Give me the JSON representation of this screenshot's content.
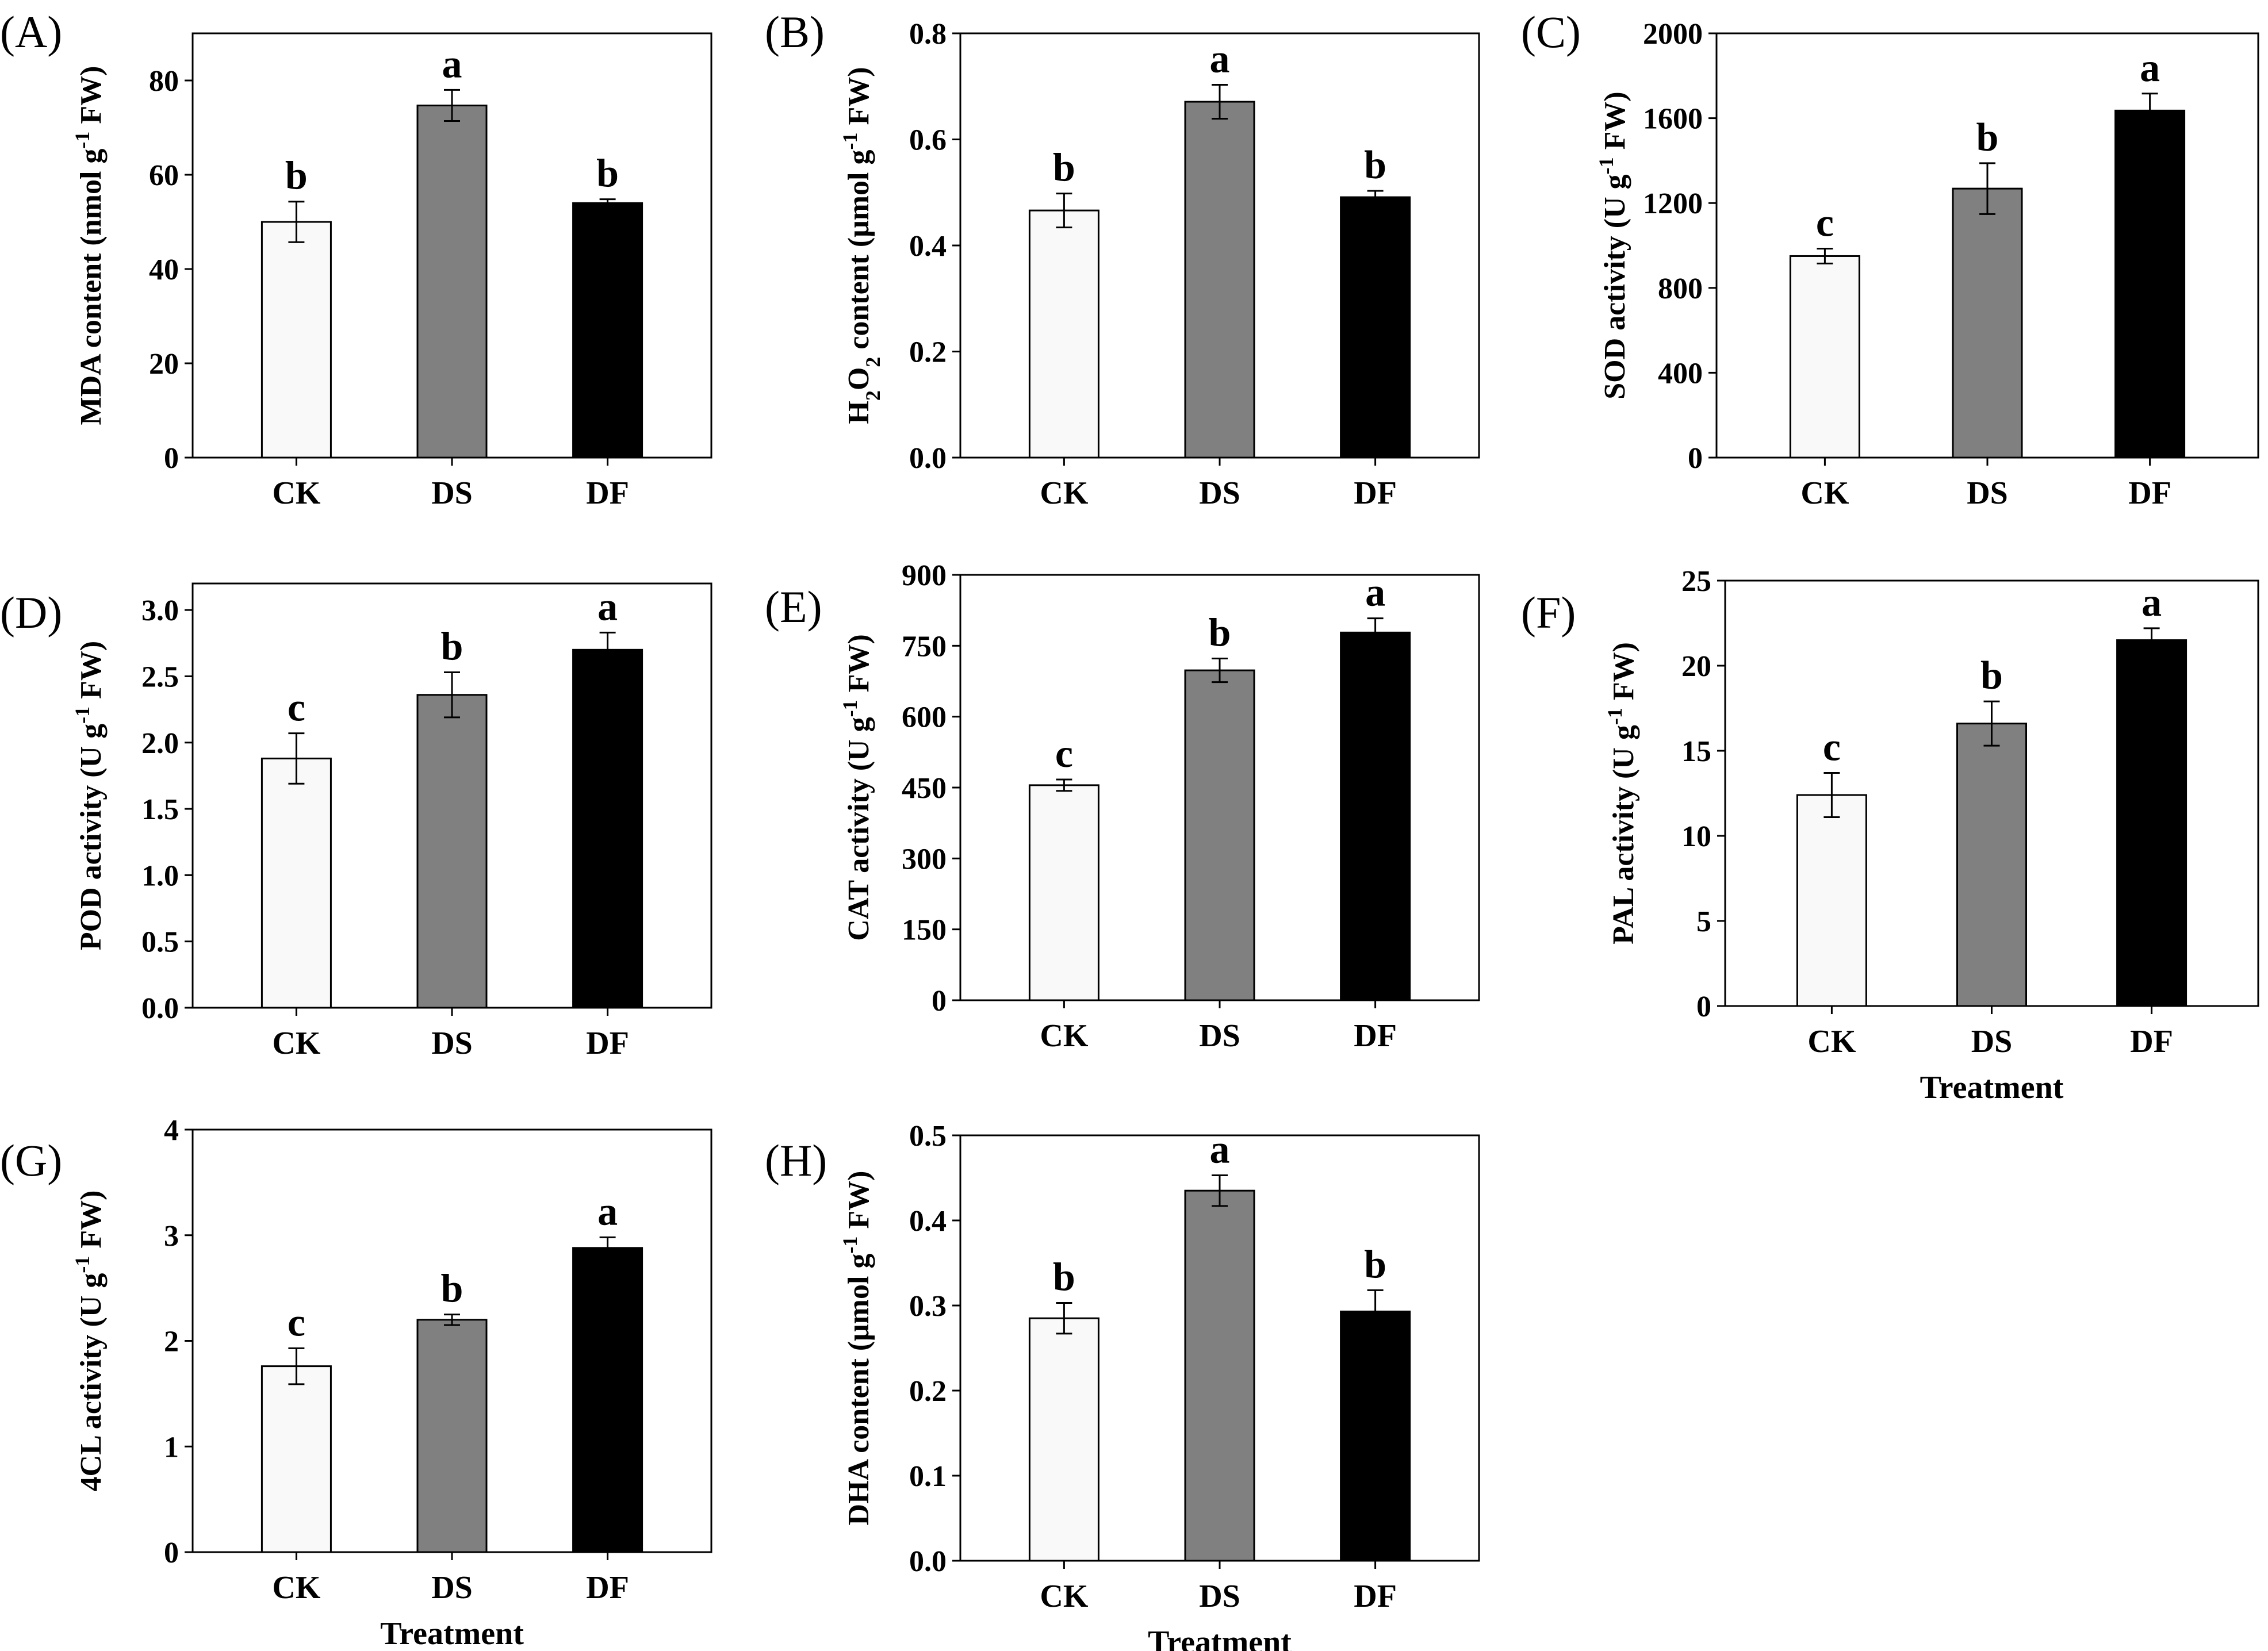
{
  "colors": {
    "CK": "#f9f9f9",
    "DS": "#808080",
    "DF": "#000000",
    "stroke": "#000000"
  },
  "chart_data": [
    {
      "panel": "(A)",
      "type": "bar",
      "ylabel": [
        "MDA content (nmol g",
        "-1",
        " FW)"
      ],
      "xlabel": "",
      "categories": [
        "CK",
        "DS",
        "DF"
      ],
      "values": [
        50,
        74.7,
        54
      ],
      "errors": [
        4.3,
        3.3,
        0.8
      ],
      "letters": [
        "b",
        "a",
        "b"
      ],
      "ylim": [
        0,
        90
      ],
      "ticks": [
        0,
        20,
        40,
        60,
        80
      ],
      "tick_labels": [
        "0",
        "20",
        "40",
        "60",
        "80"
      ]
    },
    {
      "panel": "(B)",
      "type": "bar",
      "ylabel": [
        "H",
        "2",
        "O",
        "2",
        " content (μmol g",
        "-1",
        " FW)"
      ],
      "xlabel": "",
      "categories": [
        "CK",
        "DS",
        "DF"
      ],
      "values": [
        0.466,
        0.671,
        0.491
      ],
      "errors": [
        0.032,
        0.032,
        0.012
      ],
      "letters": [
        "b",
        "a",
        "b"
      ],
      "ylim": [
        0,
        0.8
      ],
      "ticks": [
        0,
        0.2,
        0.4,
        0.6,
        0.8
      ],
      "tick_labels": [
        "0.0",
        "0.2",
        "0.4",
        "0.6",
        "0.8"
      ]
    },
    {
      "panel": "(C)",
      "type": "bar",
      "ylabel": [
        "SOD activity (U g",
        "-1",
        " FW)"
      ],
      "xlabel": "",
      "categories": [
        "CK",
        "DS",
        "DF"
      ],
      "values": [
        950,
        1268,
        1636
      ],
      "errors": [
        35,
        120,
        80
      ],
      "letters": [
        "c",
        "b",
        "a"
      ],
      "ylim": [
        0,
        2000
      ],
      "ticks": [
        0,
        400,
        800,
        1200,
        1600,
        2000
      ],
      "tick_labels": [
        "0",
        "400",
        "800",
        "1200",
        "1600",
        "2000"
      ]
    },
    {
      "panel": "(D)",
      "type": "bar",
      "ylabel": [
        "POD activity (U g",
        "-1",
        " FW)"
      ],
      "xlabel": "",
      "categories": [
        "CK",
        "DS",
        "DF"
      ],
      "values": [
        1.88,
        2.36,
        2.7
      ],
      "errors": [
        0.19,
        0.17,
        0.13
      ],
      "letters": [
        "c",
        "b",
        "a"
      ],
      "ylim": [
        0,
        3.2
      ],
      "ticks": [
        0,
        0.5,
        1.0,
        1.5,
        2.0,
        2.5,
        3.0
      ],
      "tick_labels": [
        "0.0",
        "0.5",
        "1.0",
        "1.5",
        "2.0",
        "2.5",
        "3.0"
      ]
    },
    {
      "panel": "(E)",
      "type": "bar",
      "ylabel": [
        "CAT activity (U g",
        "-1",
        " FW)"
      ],
      "xlabel": "",
      "categories": [
        "CK",
        "DS",
        "DF"
      ],
      "values": [
        455,
        698,
        778
      ],
      "errors": [
        12,
        25,
        30
      ],
      "letters": [
        "c",
        "b",
        "a"
      ],
      "ylim": [
        0,
        900
      ],
      "ticks": [
        0,
        150,
        300,
        450,
        600,
        750,
        900
      ],
      "tick_labels": [
        "0",
        "150",
        "300",
        "450",
        "600",
        "750",
        "900"
      ]
    },
    {
      "panel": "(F)",
      "type": "bar",
      "ylabel": [
        "PAL activity (U g",
        "-1",
        " FW)"
      ],
      "xlabel": "Treatment",
      "categories": [
        "CK",
        "DS",
        "DF"
      ],
      "values": [
        12.4,
        16.6,
        21.5
      ],
      "errors": [
        1.3,
        1.3,
        0.7
      ],
      "letters": [
        "c",
        "b",
        "a"
      ],
      "ylim": [
        0,
        25
      ],
      "ticks": [
        0,
        5,
        10,
        15,
        20,
        25
      ],
      "tick_labels": [
        "0",
        "5",
        "10",
        "15",
        "20",
        "25"
      ]
    },
    {
      "panel": "(G)",
      "type": "bar",
      "ylabel": [
        "4CL activity (U g",
        "-1",
        " FW)"
      ],
      "xlabel": "Treatment",
      "categories": [
        "CK",
        "DS",
        "DF"
      ],
      "values": [
        1.76,
        2.2,
        2.88
      ],
      "errors": [
        0.17,
        0.05,
        0.1
      ],
      "letters": [
        "c",
        "b",
        "a"
      ],
      "ylim": [
        0,
        4
      ],
      "ticks": [
        0,
        1,
        2,
        3,
        4
      ],
      "tick_labels": [
        "0",
        "1",
        "2",
        "3",
        "4"
      ]
    },
    {
      "panel": "(H)",
      "type": "bar",
      "ylabel": [
        "DHA content (μmol g",
        "-1",
        " FW)"
      ],
      "xlabel": "Treatment",
      "categories": [
        "CK",
        "DS",
        "DF"
      ],
      "values": [
        0.285,
        0.435,
        0.293
      ],
      "errors": [
        0.018,
        0.018,
        0.025
      ],
      "letters": [
        "b",
        "a",
        "b"
      ],
      "ylim": [
        0,
        0.5
      ],
      "ticks": [
        0,
        0.1,
        0.2,
        0.3,
        0.4,
        0.5
      ],
      "tick_labels": [
        "0.0",
        "0.1",
        "0.2",
        "0.3",
        "0.4",
        "0.5"
      ]
    }
  ]
}
